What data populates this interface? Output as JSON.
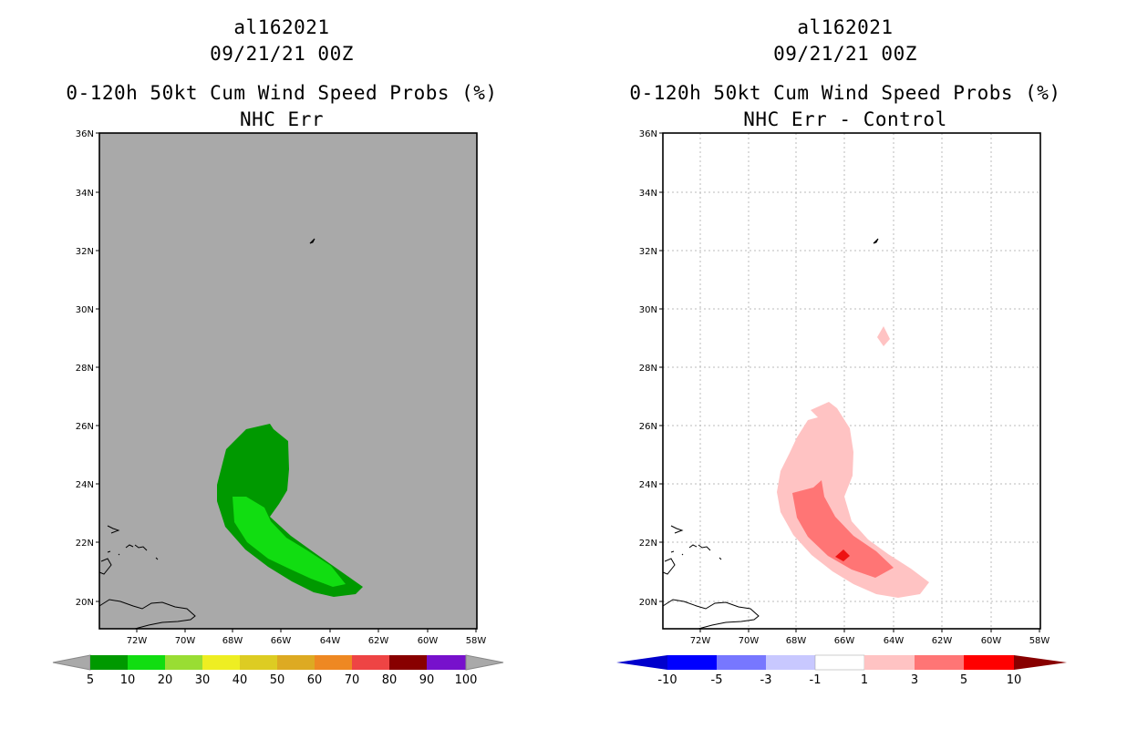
{
  "colors": {
    "left_background": "#a9a9a9",
    "green_dark": "#009900",
    "green_light": "#11dd11",
    "pink_light": "#ffc3c3",
    "pink_mid": "#ff7575",
    "red": "#ee1111",
    "grid": "#bbbbbb"
  },
  "chart_data": [
    {
      "type": "map-contour",
      "title_lines": [
        "al162021",
        "09/21/21 00Z",
        "0-120h 50kt Cum Wind Speed Probs (%)",
        "NHC Err"
      ],
      "lon_ticks": [
        "72W",
        "70W",
        "68W",
        "66W",
        "64W",
        "62W",
        "60W",
        "58W"
      ],
      "lat_ticks": [
        "36N",
        "34N",
        "32N",
        "30N",
        "28N",
        "26N",
        "24N",
        "22N",
        "20N"
      ],
      "lon_range": [
        -74.0,
        -58.0
      ],
      "lat_range": [
        19.1,
        36.0
      ],
      "grid": false,
      "contour_levels_shown": [
        "5",
        "10"
      ],
      "colorbar": {
        "labels": [
          "5",
          "10",
          "20",
          "30",
          "40",
          "50",
          "60",
          "70",
          "80",
          "90",
          "100"
        ],
        "colors": [
          "#009900",
          "#11dd11",
          "#99dd33",
          "#eeee22",
          "#ddcc22",
          "#ddaa22",
          "#ee8822",
          "#ee4444",
          "#880000",
          "#7711cc"
        ]
      }
    },
    {
      "type": "map-contour",
      "title_lines": [
        "al162021",
        "09/21/21 00Z",
        "0-120h 50kt Cum Wind Speed Probs (%)",
        "NHC Err - Control"
      ],
      "lon_ticks": [
        "72W",
        "70W",
        "68W",
        "66W",
        "64W",
        "62W",
        "60W",
        "58W"
      ],
      "lat_ticks": [
        "36N",
        "34N",
        "32N",
        "30N",
        "28N",
        "26N",
        "24N",
        "22N",
        "20N"
      ],
      "lon_range": [
        -74.0,
        -58.0
      ],
      "lat_range": [
        19.1,
        36.0
      ],
      "grid": true,
      "contour_levels_shown": [
        "1",
        "3",
        "5"
      ],
      "colorbar": {
        "labels": [
          "-10",
          "-5",
          "-3",
          "-1",
          "1",
          "3",
          "5",
          "10"
        ],
        "colors": [
          "#0000cc",
          "#0000ff",
          "#7777ff",
          "#c8c8ff",
          "#ffffff",
          "#ffc3c3",
          "#ff7575",
          "#ff0000",
          "#880000"
        ]
      }
    }
  ]
}
